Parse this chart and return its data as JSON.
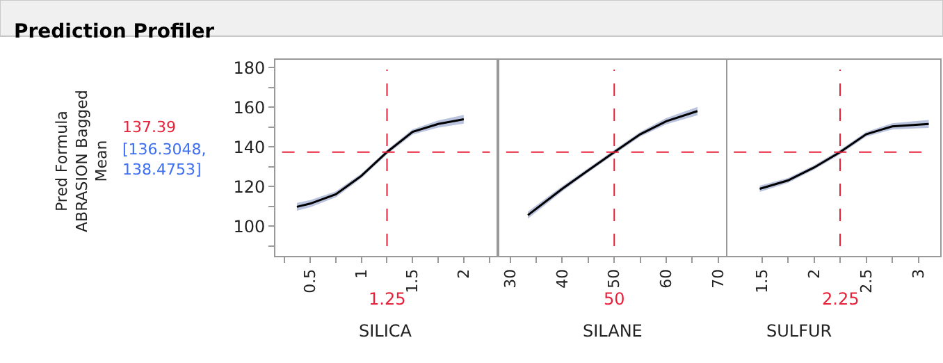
{
  "chart_data": [
    {
      "type": "line",
      "title": "Prediction Profiler",
      "ylabel": "Pred Formula ABRASION Bagged Mean",
      "xlabel": "SILICA",
      "annotations": [
        "[136.3048, 138.4753]"
      ],
      "xlim": [
        0.16,
        2.32
      ],
      "xticks": [
        {
          "value": 0.25,
          "label": null
        },
        0.5,
        {
          "value": 0.75,
          "label": null
        },
        1,
        {
          "value": 1.25,
          "label": null
        },
        1.5,
        {
          "value": 1.75,
          "label": null
        },
        2,
        {
          "value": 2.25,
          "label": null
        }
      ],
      "ylim": [
        85,
        184
      ],
      "yticks": [
        {
          "value": 90,
          "label": null
        },
        100,
        {
          "value": 110,
          "label": null
        },
        120,
        {
          "value": 130,
          "label": null
        },
        140,
        {
          "value": 150,
          "label": null
        },
        160,
        {
          "value": 170,
          "label": null
        },
        180
      ],
      "series": [
        {
          "color": "#000000",
          "x": [
            0.37,
            0.5,
            0.75,
            1,
            1.25,
            1.5,
            1.75,
            2
          ],
          "values": [
            109.8,
            111.4,
            116.1,
            125.4,
            137.4,
            147.6,
            151.6,
            154
          ],
          "lower": [
            107.8,
            109.6,
            114.6,
            124.2,
            136.3,
            146.3,
            149.8,
            151.8
          ],
          "upper": [
            111.8,
            113.2,
            117.6,
            126.6,
            138.5,
            148.9,
            153.4,
            156.2
          ]
        }
      ],
      "ref_lines": [
        {
          "axis": "x",
          "value": 1.25,
          "label": "1.25",
          "color": "#e8203a",
          "line_style": "dashed"
        },
        {
          "axis": "y",
          "value": 137.39,
          "label": "137.39",
          "color": "#e8203a",
          "line_style": "dashed"
        }
      ]
    },
    {
      "type": "line",
      "xlabel": "SILANE",
      "tick_labels": "x",
      "xlim": [
        27.9,
        71.5
      ],
      "xticks": [
        30,
        {
          "value": 35,
          "label": null
        },
        40,
        {
          "value": 45,
          "label": null
        },
        50,
        {
          "value": 55,
          "label": null
        },
        60,
        {
          "value": 65,
          "label": null
        },
        70
      ],
      "ylim": [
        85,
        184
      ],
      "series": [
        {
          "color": "#000000",
          "x": [
            33.4,
            40,
            45,
            50,
            55,
            60,
            66
          ],
          "values": [
            105.6,
            118.9,
            128.2,
            137.4,
            146.4,
            153,
            158.1
          ],
          "lower": [
            103.8,
            117.6,
            127.1,
            136.3,
            145.2,
            151.4,
            156
          ],
          "upper": [
            107.4,
            120.2,
            129.3,
            138.5,
            147.6,
            154.6,
            160.2
          ]
        }
      ],
      "ref_lines": [
        {
          "axis": "x",
          "value": 50,
          "label": "50",
          "color": "#e8203a",
          "line_style": "dashed"
        },
        {
          "axis": "y",
          "value": 137.39,
          "color": "#e8203a",
          "line_style": "dashed"
        }
      ]
    },
    {
      "type": "line",
      "xlabel": "SULFUR",
      "tick_labels": "x",
      "xlim": [
        1.17,
        3.21
      ],
      "xticks": [
        1.5,
        {
          "value": 1.75,
          "label": null
        },
        2,
        {
          "value": 2.25,
          "label": null
        },
        2.5,
        {
          "value": 2.75,
          "label": null
        },
        3
      ],
      "ylim": [
        85,
        184
      ],
      "series": [
        {
          "color": "#000000",
          "x": [
            1.48,
            1.75,
            2,
            2.25,
            2.5,
            2.75,
            3,
            3.1
          ],
          "values": [
            118.9,
            123.1,
            129.6,
            137.4,
            146.4,
            150.4,
            151.3,
            151.6
          ],
          "lower": [
            117.3,
            121.9,
            128.5,
            136.3,
            145.2,
            148.8,
            149.4,
            149.6
          ],
          "upper": [
            120.5,
            124.3,
            130.7,
            138.5,
            147.6,
            152,
            153.2,
            153.6
          ]
        }
      ],
      "ref_lines": [
        {
          "axis": "x",
          "value": 2.25,
          "label": "2.25",
          "color": "#e8203a",
          "line_style": "dashed"
        },
        {
          "axis": "y",
          "value": 137.39,
          "color": "#e8203a",
          "line_style": "dashed"
        }
      ]
    }
  ]
}
